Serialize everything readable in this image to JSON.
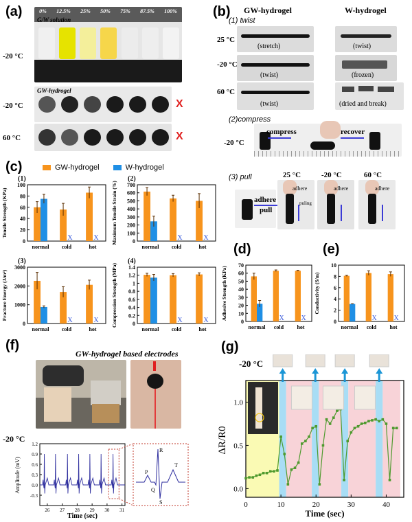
{
  "panel_a": {
    "label": "(a)",
    "concentrations": [
      "0%",
      "12.5%",
      "25%",
      "50%",
      "75%",
      "87.5%",
      "100%"
    ],
    "solution_caption": "G/W solution",
    "hydrogel_caption": "GW-hydrogel",
    "temps": [
      "-20 °C",
      "-20 °C",
      "60 °C"
    ],
    "fail_mark": "X"
  },
  "panel_b": {
    "label": "(b)",
    "col_gw": "GW-hydrogel",
    "col_w": "W-hydrogel",
    "twist_title": "(1) twist",
    "twist_rows": [
      {
        "temp": "25 °C",
        "gw": "(stretch)",
        "w": "(twist)"
      },
      {
        "temp": "-20 °C",
        "gw": "(twist)",
        "w": "(frozen)"
      },
      {
        "temp": "60 °C",
        "gw": "(twist)",
        "w": "(dried and break)"
      }
    ],
    "compress_title": "(2)compress",
    "compress_temp": "-20 °C",
    "compress_label": "compress",
    "recover_label": "recover",
    "pull_title": "(3) pull",
    "adhere_label": "adhere",
    "pull_label": "pull",
    "pulling_label": "puling",
    "pull_temps": [
      "25 °C",
      "-20 °C",
      "60 °C"
    ],
    "adhere_small": [
      "adhere",
      "adhere",
      "adhere"
    ]
  },
  "panel_c": {
    "label": "(c)",
    "legend": [
      "GW-hydrogel",
      "W-hydrogel"
    ]
  },
  "panel_d": {
    "label": "(d)"
  },
  "panel_e": {
    "label": "(e)"
  },
  "panel_f": {
    "label": "(f)",
    "title": "GW-hydrogel based electrodes",
    "temp": "-20 °C"
  },
  "panel_g": {
    "label": "(g)",
    "temp": "-20 °C"
  },
  "colors": {
    "gw": "#F7941D",
    "w": "#1F8FE5",
    "fail": "#3B5BDB",
    "ecg": "#2E2E9E",
    "green": "#4E9A2E"
  },
  "chart_data": [
    {
      "id": "c1",
      "type": "bar",
      "panel_number": "(1)",
      "ylabel": "Tensile Strength (KPa)",
      "categories": [
        "normal",
        "cold",
        "hot"
      ],
      "ylim": [
        0,
        100
      ],
      "yticks": [
        0,
        20,
        40,
        60,
        80,
        100
      ],
      "series": [
        {
          "name": "GW-hydrogel",
          "values": [
            60,
            56,
            86
          ],
          "errors": [
            10,
            11,
            10
          ]
        },
        {
          "name": "W-hydrogel",
          "values": [
            75,
            null,
            null
          ],
          "errors": [
            8,
            null,
            null
          ],
          "fail_mark": [
            false,
            true,
            true
          ]
        }
      ]
    },
    {
      "id": "c2",
      "type": "bar",
      "panel_number": "(2)",
      "ylabel": "Maximum Tensile Strain (%)",
      "categories": [
        "normal",
        "cold",
        "hot"
      ],
      "ylim": [
        0,
        700
      ],
      "yticks": [
        0,
        100,
        200,
        300,
        400,
        500,
        600,
        700
      ],
      "series": [
        {
          "name": "GW-hydrogel",
          "values": [
            615,
            530,
            500
          ],
          "errors": [
            50,
            40,
            90
          ]
        },
        {
          "name": "W-hydrogel",
          "values": [
            245,
            null,
            null
          ],
          "errors": [
            65,
            null,
            null
          ],
          "fail_mark": [
            false,
            true,
            true
          ]
        }
      ]
    },
    {
      "id": "c3",
      "type": "bar",
      "panel_number": "(3)",
      "ylabel": "Fracture Energy (J/m²)",
      "categories": [
        "normal",
        "cold",
        "hot"
      ],
      "ylim": [
        0,
        3000
      ],
      "yticks": [
        0,
        1000,
        2000,
        3000
      ],
      "series": [
        {
          "name": "GW-hydrogel",
          "values": [
            2270,
            1680,
            2060
          ],
          "errors": [
            450,
            280,
            250
          ]
        },
        {
          "name": "W-hydrogel",
          "values": [
            880,
            null,
            null
          ],
          "errors": [
            60,
            null,
            null
          ],
          "fail_mark": [
            false,
            true,
            true
          ]
        }
      ]
    },
    {
      "id": "c4",
      "type": "bar",
      "panel_number": "(4)",
      "ylabel": "Compression Strength (MPa)",
      "categories": [
        "normal",
        "cold",
        "hot"
      ],
      "ylim": [
        0,
        1.4
      ],
      "yticks": [
        0,
        0.2,
        0.4,
        0.6,
        0.8,
        1.0,
        1.2,
        1.4
      ],
      "series": [
        {
          "name": "GW-hydrogel",
          "values": [
            1.21,
            1.2,
            1.22
          ],
          "errors": [
            0.04,
            0.04,
            0.04
          ]
        },
        {
          "name": "W-hydrogel",
          "values": [
            1.14,
            null,
            null
          ],
          "errors": [
            0.08,
            null,
            null
          ],
          "fail_mark": [
            false,
            true,
            true
          ]
        }
      ]
    },
    {
      "id": "d",
      "type": "bar",
      "ylabel": "Adhesive Strength (KPa)",
      "categories": [
        "normal",
        "cold",
        "hot"
      ],
      "ylim": [
        0,
        70
      ],
      "yticks": [
        0,
        10,
        20,
        30,
        40,
        50,
        60,
        70
      ],
      "series": [
        {
          "name": "GW-hydrogel",
          "values": [
            56,
            63,
            63
          ],
          "errors": [
            4,
            1,
            0.5
          ]
        },
        {
          "name": "W-hydrogel",
          "values": [
            22,
            null,
            null
          ],
          "errors": [
            4,
            null,
            null
          ],
          "fail_mark": [
            false,
            true,
            true
          ]
        }
      ]
    },
    {
      "id": "e",
      "type": "bar",
      "ylabel": "Conductivity (S/m)",
      "categories": [
        "normal",
        "cold",
        "hot"
      ],
      "ylim": [
        0,
        10
      ],
      "yticks": [
        0,
        2,
        4,
        6,
        8,
        10
      ],
      "series": [
        {
          "name": "GW-hydrogel",
          "values": [
            8.1,
            8.6,
            8.4
          ],
          "errors": [
            0.1,
            0.4,
            0.4
          ]
        },
        {
          "name": "W-hydrogel",
          "values": [
            3.1,
            null,
            null
          ],
          "errors": [
            0.05,
            null,
            null
          ],
          "fail_mark": [
            false,
            true,
            true
          ]
        }
      ]
    },
    {
      "id": "f",
      "type": "line",
      "xlabel": "Time (sec)",
      "ylabel": "Amplitude (mV)",
      "xlim": [
        25.5,
        31.2
      ],
      "xticks": [
        26,
        27,
        28,
        29,
        30,
        31
      ],
      "ylim": [
        -0.6,
        1.2
      ],
      "yticks": [
        -0.3,
        0.0,
        0.3,
        0.6,
        0.9,
        1.2
      ],
      "beats_x": [
        25.8,
        26.55,
        27.35,
        28.1,
        28.85,
        29.6,
        30.4
      ],
      "r_peak": 0.9,
      "baseline": 0.0,
      "s_trough": -0.25,
      "inset_labels": [
        "P",
        "Q",
        "R",
        "S",
        "T"
      ]
    },
    {
      "id": "g",
      "type": "line",
      "xlabel": "Time (sec)",
      "ylabel": "ΔR/R0",
      "xlim": [
        0,
        45
      ],
      "xticks": [
        0,
        10,
        20,
        30,
        40
      ],
      "ylim": [
        -0.1,
        1.25
      ],
      "yticks": [
        0.0,
        0.5,
        1.0
      ],
      "series": [
        {
          "x": [
            0,
            1,
            2,
            3,
            4,
            5,
            6,
            7,
            8,
            9,
            10,
            11,
            12,
            13,
            14,
            15,
            16,
            17,
            18,
            19,
            20,
            21,
            22,
            23,
            24,
            25,
            26,
            27,
            28,
            29,
            30,
            31,
            32,
            33,
            34,
            35,
            36,
            37,
            38,
            39,
            40,
            41,
            42,
            43
          ],
          "y": [
            0.12,
            0.13,
            0.13,
            0.15,
            0.16,
            0.18,
            0.18,
            0.2,
            0.2,
            0.21,
            0.6,
            0.4,
            0.05,
            0.22,
            0.24,
            0.3,
            0.52,
            0.55,
            0.6,
            0.7,
            0.72,
            0.05,
            0.5,
            0.8,
            0.75,
            0.82,
            0.9,
            0.92,
            0.1,
            0.55,
            0.65,
            0.7,
            0.72,
            0.75,
            0.76,
            0.78,
            0.79,
            0.8,
            0.78,
            0.8,
            0.75,
            0.1,
            0.7,
            0.7
          ]
        }
      ],
      "regions": [
        {
          "x0": 0,
          "x1": 9.5,
          "color": "#FAFAB4"
        },
        {
          "x0": 9.5,
          "x1": 11.5,
          "color": "#A8DDF5"
        },
        {
          "x0": 11.5,
          "x1": 18.8,
          "color": "#F8D3D8"
        },
        {
          "x0": 18.8,
          "x1": 20.8,
          "color": "#A8DDF5"
        },
        {
          "x0": 20.8,
          "x1": 27.2,
          "color": "#F8D3D8"
        },
        {
          "x0": 27.2,
          "x1": 29.2,
          "color": "#A8DDF5"
        },
        {
          "x0": 29.2,
          "x1": 37.0,
          "color": "#F8D3D8"
        },
        {
          "x0": 37.0,
          "x1": 39.0,
          "color": "#A8DDF5"
        },
        {
          "x0": 39.0,
          "x1": 44.0,
          "color": "#F8D3D8"
        }
      ],
      "arrow_times": [
        10.5,
        19.8,
        28.2,
        38.0
      ]
    }
  ]
}
